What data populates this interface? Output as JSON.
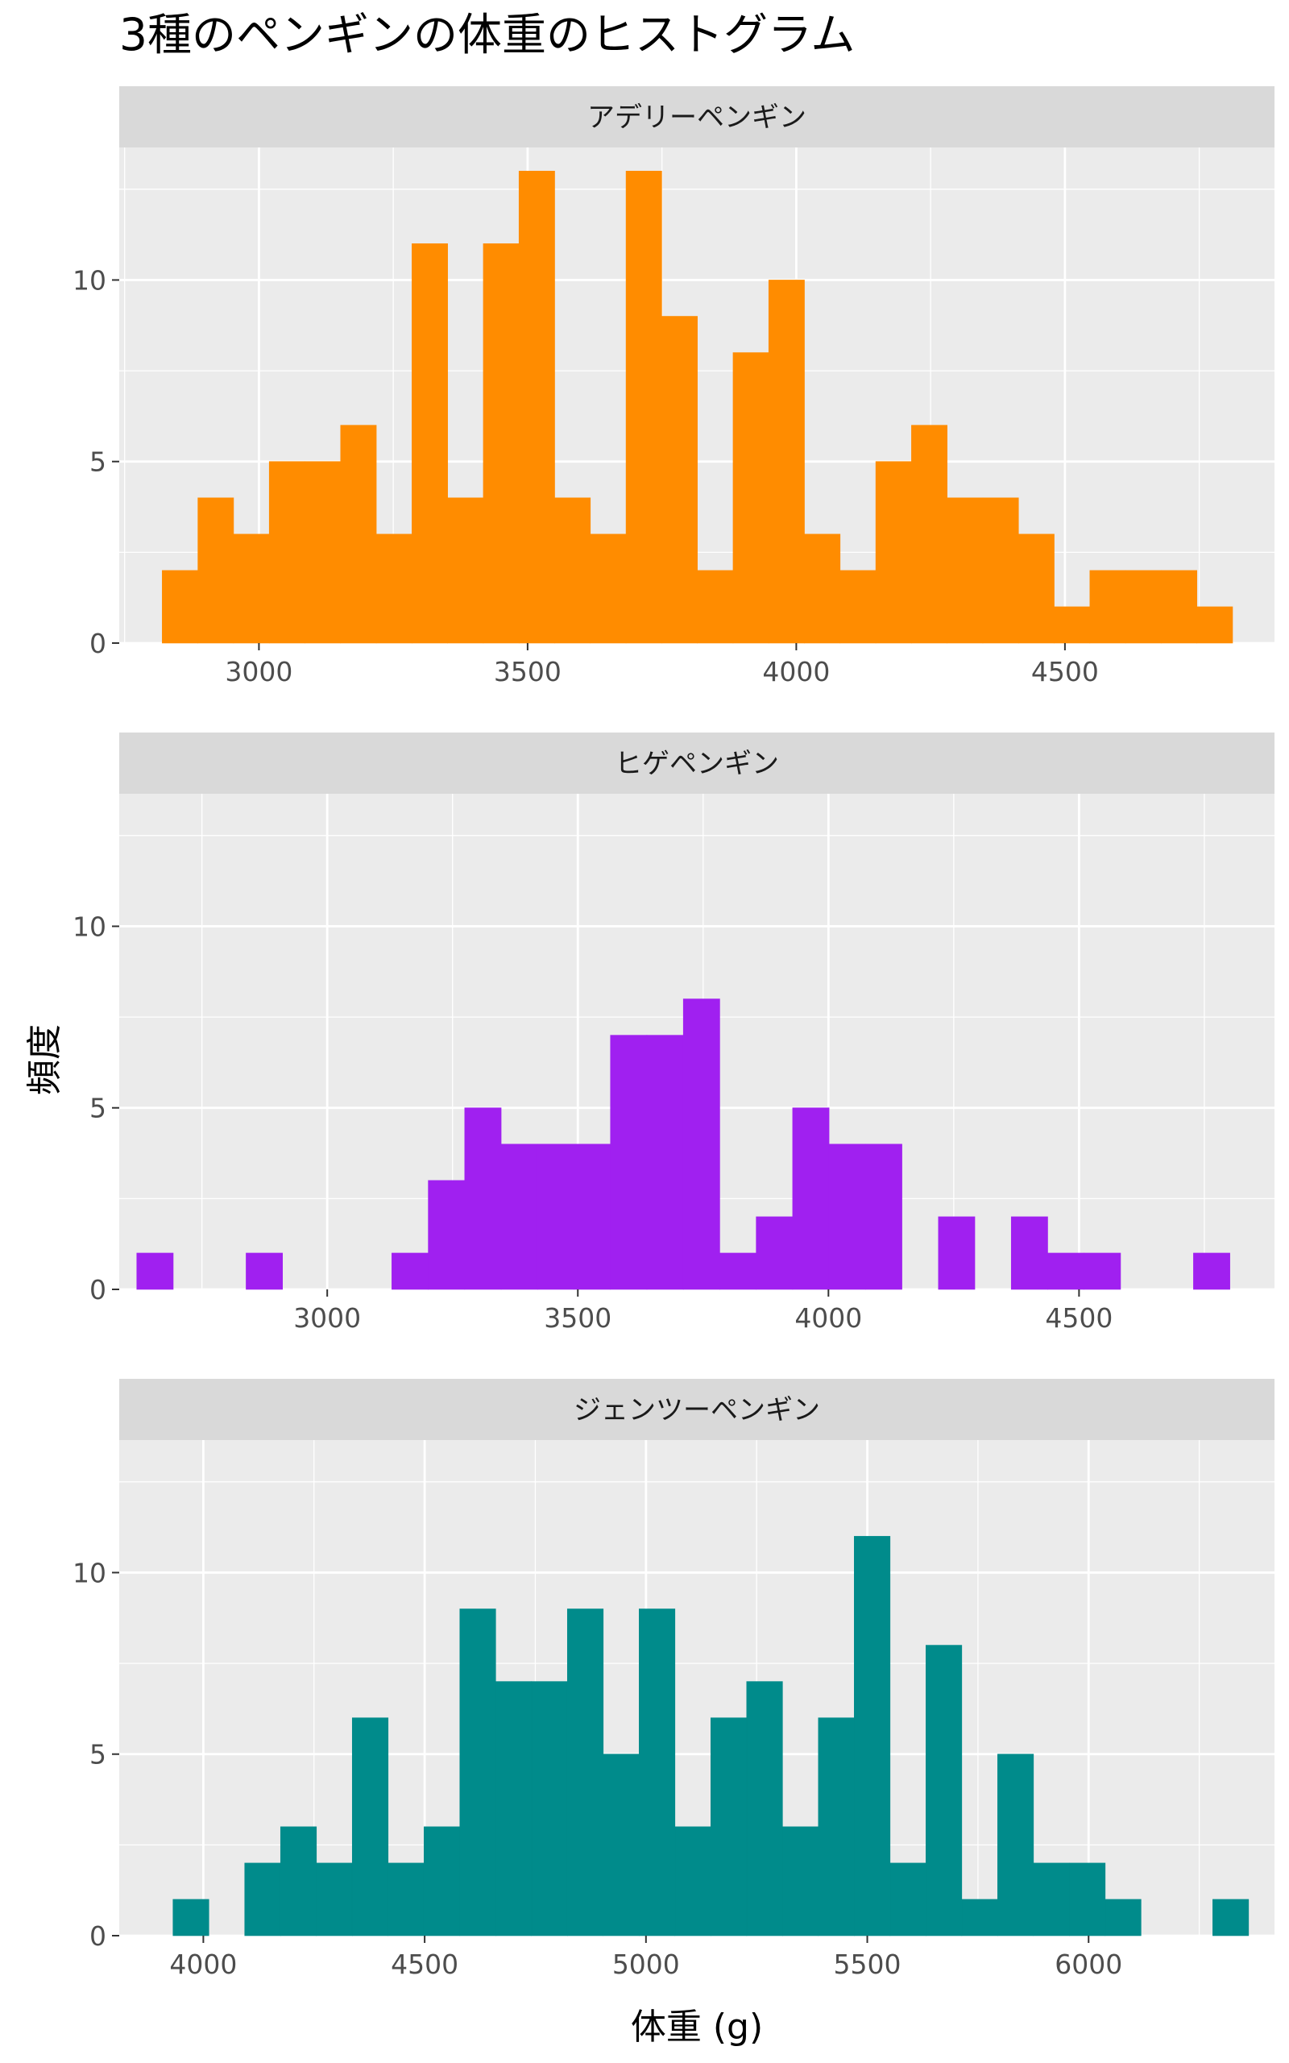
{
  "chart_data": {
    "type": "bar",
    "title": "3種のペンギンの体重のヒストグラム",
    "xlabel": "体重 (g)",
    "ylabel": "頻度",
    "ylim": [
      0,
      13.65
    ],
    "yticks": [
      0,
      5,
      10
    ],
    "grid": true,
    "legend": "none",
    "facets": [
      {
        "label": "アデリーペンギン",
        "color": "#FF8C00",
        "xlim": [
          2740,
          4890
        ],
        "xticks": [
          3000,
          3500,
          4000,
          4500
        ],
        "bin_width": 66.4,
        "bins": [
          {
            "start": 2820.0,
            "count": 2
          },
          {
            "start": 2886.4,
            "count": 4
          },
          {
            "start": 2952.8,
            "count": 3
          },
          {
            "start": 3019.2,
            "count": 5
          },
          {
            "start": 3085.6,
            "count": 5
          },
          {
            "start": 3152.0,
            "count": 6
          },
          {
            "start": 3218.4,
            "count": 3
          },
          {
            "start": 3284.8,
            "count": 11
          },
          {
            "start": 3351.2,
            "count": 4
          },
          {
            "start": 3417.6,
            "count": 11
          },
          {
            "start": 3484.0,
            "count": 13
          },
          {
            "start": 3550.4,
            "count": 4
          },
          {
            "start": 3616.8,
            "count": 3
          },
          {
            "start": 3683.2,
            "count": 13
          },
          {
            "start": 3749.6,
            "count": 9
          },
          {
            "start": 3816.0,
            "count": 2
          },
          {
            "start": 3882.4,
            "count": 8
          },
          {
            "start": 3948.8,
            "count": 10
          },
          {
            "start": 4015.2,
            "count": 3
          },
          {
            "start": 4081.6,
            "count": 2
          },
          {
            "start": 4148.0,
            "count": 5
          },
          {
            "start": 4214.4,
            "count": 6
          },
          {
            "start": 4280.8,
            "count": 4
          },
          {
            "start": 4347.2,
            "count": 4
          },
          {
            "start": 4413.6,
            "count": 3
          },
          {
            "start": 4480.0,
            "count": 1
          },
          {
            "start": 4546.4,
            "count": 2
          },
          {
            "start": 4612.8,
            "count": 2
          },
          {
            "start": 4679.2,
            "count": 2
          },
          {
            "start": 4745.6,
            "count": 1
          }
        ]
      },
      {
        "label": "ヒゲペンギン",
        "color": "#A020F0",
        "xlim": [
          2585,
          4890
        ],
        "xticks": [
          3000,
          3500,
          4000,
          4500
        ],
        "bin_width": 72.7,
        "bins": [
          {
            "start": 2620.0,
            "count": 1
          },
          {
            "start": 2692.7,
            "count": 0
          },
          {
            "start": 2765.4,
            "count": 0
          },
          {
            "start": 2838.1,
            "count": 1
          },
          {
            "start": 2910.8,
            "count": 0
          },
          {
            "start": 2983.5,
            "count": 0
          },
          {
            "start": 3056.2,
            "count": 0
          },
          {
            "start": 3128.9,
            "count": 1
          },
          {
            "start": 3201.6,
            "count": 3
          },
          {
            "start": 3274.3,
            "count": 5
          },
          {
            "start": 3347.0,
            "count": 4
          },
          {
            "start": 3419.7,
            "count": 4
          },
          {
            "start": 3492.4,
            "count": 4
          },
          {
            "start": 3565.1,
            "count": 7
          },
          {
            "start": 3637.8,
            "count": 7
          },
          {
            "start": 3710.5,
            "count": 8
          },
          {
            "start": 3783.2,
            "count": 1
          },
          {
            "start": 3855.9,
            "count": 2
          },
          {
            "start": 3928.6,
            "count": 5
          },
          {
            "start": 4001.3,
            "count": 4
          },
          {
            "start": 4074.0,
            "count": 4
          },
          {
            "start": 4146.7,
            "count": 0
          },
          {
            "start": 4219.4,
            "count": 2
          },
          {
            "start": 4292.1,
            "count": 0
          },
          {
            "start": 4364.8,
            "count": 2
          },
          {
            "start": 4437.5,
            "count": 1
          },
          {
            "start": 4510.2,
            "count": 1
          },
          {
            "start": 4582.9,
            "count": 0
          },
          {
            "start": 4655.6,
            "count": 0
          },
          {
            "start": 4728.3,
            "count": 1
          }
        ]
      },
      {
        "label": "ジェンツーペンギン",
        "color": "#008B8B",
        "xlim": [
          3810,
          6420
        ],
        "xticks": [
          4000,
          4500,
          5000,
          5500,
          6000
        ],
        "bin_width": 81.0,
        "bins": [
          {
            "start": 3931.5,
            "count": 1
          },
          {
            "start": 4012.5,
            "count": 0
          },
          {
            "start": 4093.5,
            "count": 2
          },
          {
            "start": 4174.5,
            "count": 3
          },
          {
            "start": 4255.5,
            "count": 2
          },
          {
            "start": 4336.5,
            "count": 6
          },
          {
            "start": 4417.5,
            "count": 2
          },
          {
            "start": 4498.5,
            "count": 3
          },
          {
            "start": 4579.5,
            "count": 9
          },
          {
            "start": 4660.5,
            "count": 7
          },
          {
            "start": 4741.5,
            "count": 7
          },
          {
            "start": 4822.5,
            "count": 9
          },
          {
            "start": 4903.5,
            "count": 5
          },
          {
            "start": 4984.5,
            "count": 9
          },
          {
            "start": 5065.5,
            "count": 3
          },
          {
            "start": 5146.5,
            "count": 6
          },
          {
            "start": 5227.5,
            "count": 7
          },
          {
            "start": 5308.5,
            "count": 3
          },
          {
            "start": 5389.5,
            "count": 6
          },
          {
            "start": 5470.5,
            "count": 11
          },
          {
            "start": 5551.5,
            "count": 2
          },
          {
            "start": 5632.5,
            "count": 8
          },
          {
            "start": 5713.5,
            "count": 1
          },
          {
            "start": 5794.5,
            "count": 5
          },
          {
            "start": 5875.5,
            "count": 2
          },
          {
            "start": 5956.5,
            "count": 2
          },
          {
            "start": 6037.5,
            "count": 1
          },
          {
            "start": 6118.5,
            "count": 0
          },
          {
            "start": 6199.5,
            "count": 0
          },
          {
            "start": 6280.5,
            "count": 1
          }
        ]
      }
    ]
  }
}
